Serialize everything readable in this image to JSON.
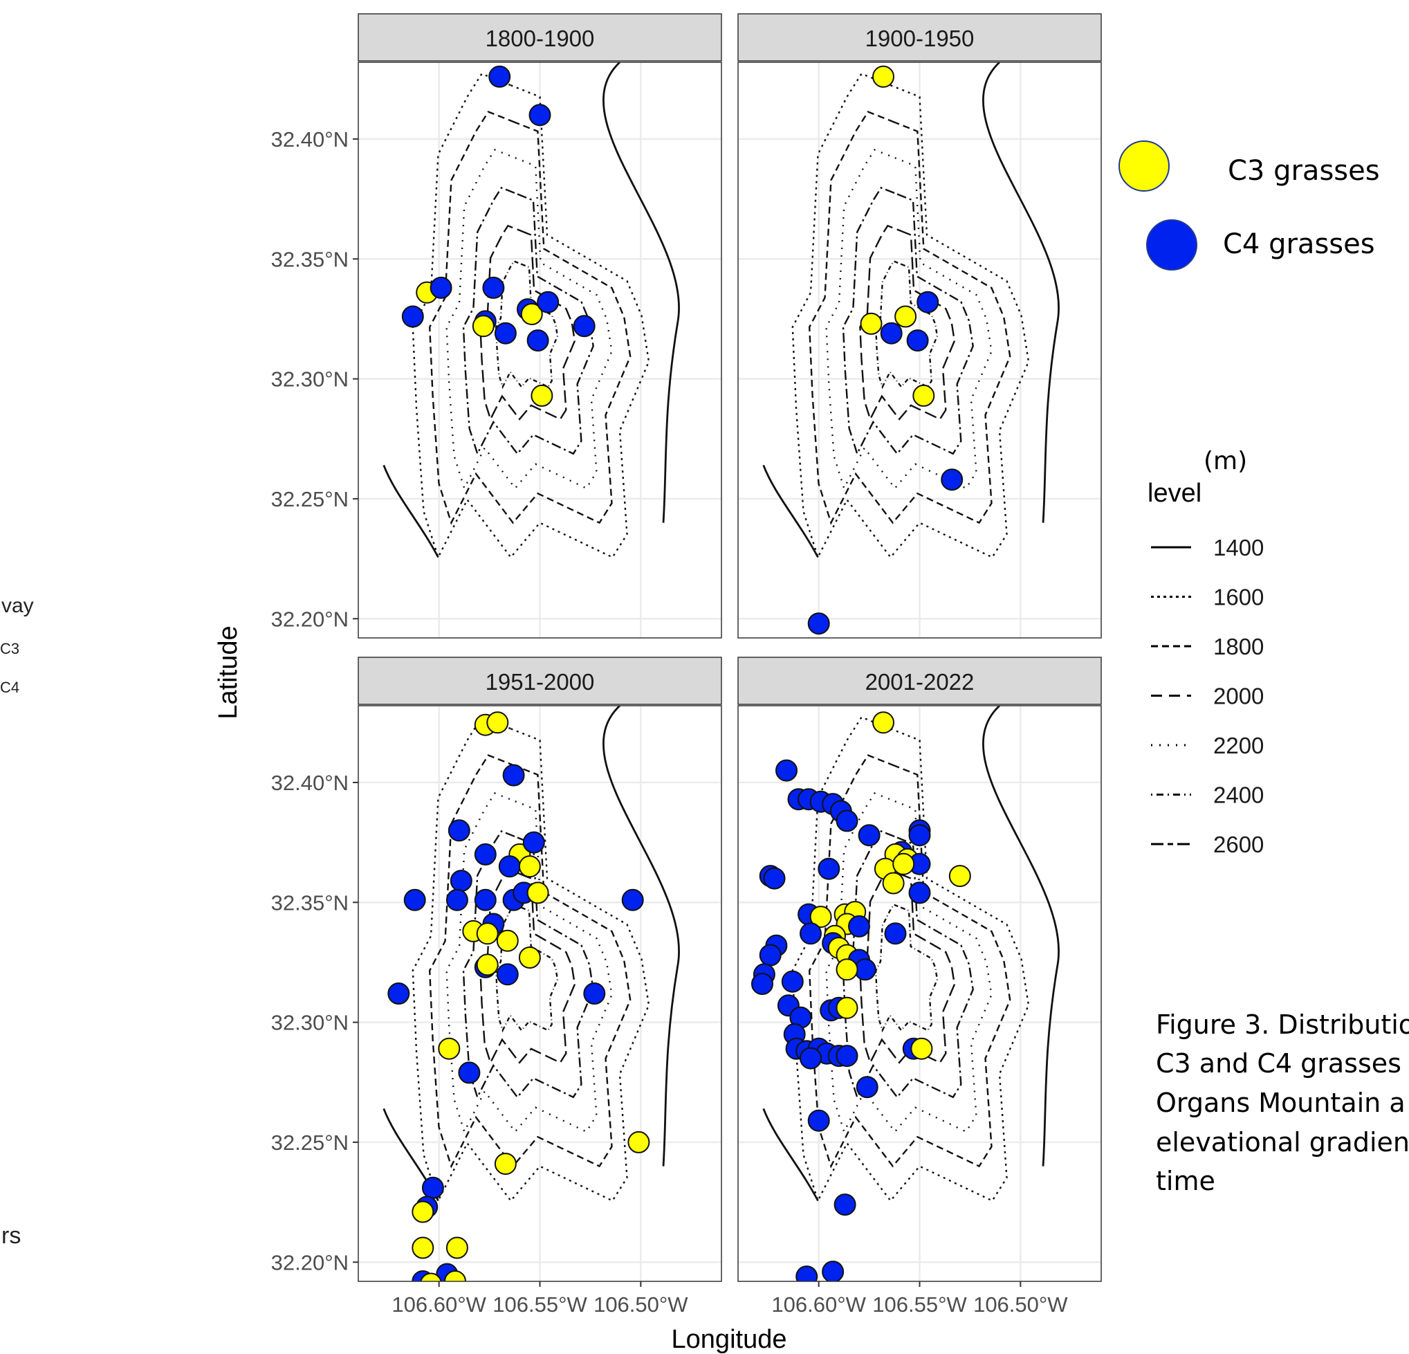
{
  "chart_data": {
    "type": "scatter",
    "facet_layout": "2x2",
    "xlabel": "Longitude",
    "ylabel": "Latitude",
    "xlim": [
      -106.64,
      -106.46
    ],
    "ylim": [
      32.192,
      32.432
    ],
    "x_ticks": [
      -106.6,
      -106.55,
      -106.5
    ],
    "x_tick_labels": [
      "106.60°W",
      "106.55°W",
      "106.50°W"
    ],
    "y_ticks": [
      32.2,
      32.25,
      32.3,
      32.35,
      32.4
    ],
    "y_tick_labels": [
      "32.20°N",
      "32.25°N",
      "32.30°N",
      "32.35°N",
      "32.40°N"
    ],
    "grid": true,
    "colors": {
      "C3": "#ffff00",
      "C4": "#0022ee",
      "strip": "#d9d9d9",
      "grid": "#ebebeb"
    },
    "legend_points": {
      "placement": "right-top",
      "entries": [
        {
          "label": "C3 grasses",
          "key": "C3"
        },
        {
          "label": "C4 grasses",
          "key": "C4"
        }
      ]
    },
    "legend_level": {
      "title_unit": "(m)",
      "title": "level",
      "placement": "right-middle",
      "entries": [
        {
          "label": "1400",
          "dash": "solid"
        },
        {
          "label": "1600",
          "dash": "dotted"
        },
        {
          "label": "1800",
          "dash": "dashed"
        },
        {
          "label": "2000",
          "dash": "longdash"
        },
        {
          "label": "2200",
          "dash": "dotted-sparse"
        },
        {
          "label": "2400",
          "dash": "dotdash"
        },
        {
          "label": "2600",
          "dash": "twodash"
        }
      ]
    },
    "panels": [
      {
        "label": "1800-1900",
        "points": [
          {
            "x": -106.57,
            "y": 32.426,
            "g": "C4"
          },
          {
            "x": -106.55,
            "y": 32.41,
            "g": "C4"
          },
          {
            "x": -106.606,
            "y": 32.336,
            "g": "C3"
          },
          {
            "x": -106.599,
            "y": 32.338,
            "g": "C4"
          },
          {
            "x": -106.573,
            "y": 32.338,
            "g": "C4"
          },
          {
            "x": -106.613,
            "y": 32.326,
            "g": "C4"
          },
          {
            "x": -106.577,
            "y": 32.324,
            "g": "C4"
          },
          {
            "x": -106.578,
            "y": 32.322,
            "g": "C3"
          },
          {
            "x": -106.567,
            "y": 32.319,
            "g": "C4"
          },
          {
            "x": -106.556,
            "y": 32.329,
            "g": "C4"
          },
          {
            "x": -106.554,
            "y": 32.327,
            "g": "C3"
          },
          {
            "x": -106.546,
            "y": 32.332,
            "g": "C4"
          },
          {
            "x": -106.551,
            "y": 32.316,
            "g": "C4"
          },
          {
            "x": -106.528,
            "y": 32.322,
            "g": "C4"
          },
          {
            "x": -106.549,
            "y": 32.293,
            "g": "C3"
          }
        ]
      },
      {
        "label": "1900-1950",
        "points": [
          {
            "x": -106.568,
            "y": 32.426,
            "g": "C3"
          },
          {
            "x": -106.574,
            "y": 32.323,
            "g": "C3"
          },
          {
            "x": -106.564,
            "y": 32.319,
            "g": "C4"
          },
          {
            "x": -106.557,
            "y": 32.326,
            "g": "C3"
          },
          {
            "x": -106.546,
            "y": 32.332,
            "g": "C4"
          },
          {
            "x": -106.551,
            "y": 32.316,
            "g": "C4"
          },
          {
            "x": -106.548,
            "y": 32.293,
            "g": "C3"
          },
          {
            "x": -106.534,
            "y": 32.258,
            "g": "C4"
          },
          {
            "x": -106.6,
            "y": 32.198,
            "g": "C4"
          }
        ]
      },
      {
        "label": "1951-2000",
        "points": [
          {
            "x": -106.577,
            "y": 32.424,
            "g": "C3"
          },
          {
            "x": -106.571,
            "y": 32.425,
            "g": "C3"
          },
          {
            "x": -106.563,
            "y": 32.403,
            "g": "C4"
          },
          {
            "x": -106.59,
            "y": 32.38,
            "g": "C4"
          },
          {
            "x": -106.577,
            "y": 32.37,
            "g": "C4"
          },
          {
            "x": -106.56,
            "y": 32.37,
            "g": "C3"
          },
          {
            "x": -106.553,
            "y": 32.375,
            "g": "C4"
          },
          {
            "x": -106.565,
            "y": 32.365,
            "g": "C4"
          },
          {
            "x": -106.555,
            "y": 32.365,
            "g": "C3"
          },
          {
            "x": -106.589,
            "y": 32.359,
            "g": "C4"
          },
          {
            "x": -106.612,
            "y": 32.351,
            "g": "C4"
          },
          {
            "x": -106.591,
            "y": 32.351,
            "g": "C4"
          },
          {
            "x": -106.577,
            "y": 32.351,
            "g": "C4"
          },
          {
            "x": -106.563,
            "y": 32.351,
            "g": "C4"
          },
          {
            "x": -106.558,
            "y": 32.354,
            "g": "C4"
          },
          {
            "x": -106.551,
            "y": 32.354,
            "g": "C3"
          },
          {
            "x": -106.504,
            "y": 32.351,
            "g": "C4"
          },
          {
            "x": -106.573,
            "y": 32.341,
            "g": "C4"
          },
          {
            "x": -106.583,
            "y": 32.338,
            "g": "C3"
          },
          {
            "x": -106.576,
            "y": 32.337,
            "g": "C3"
          },
          {
            "x": -106.566,
            "y": 32.334,
            "g": "C3"
          },
          {
            "x": -106.555,
            "y": 32.327,
            "g": "C3"
          },
          {
            "x": -106.577,
            "y": 32.323,
            "g": "C4"
          },
          {
            "x": -106.576,
            "y": 32.324,
            "g": "C3"
          },
          {
            "x": -106.566,
            "y": 32.32,
            "g": "C4"
          },
          {
            "x": -106.62,
            "y": 32.312,
            "g": "C4"
          },
          {
            "x": -106.523,
            "y": 32.312,
            "g": "C4"
          },
          {
            "x": -106.595,
            "y": 32.289,
            "g": "C3"
          },
          {
            "x": -106.585,
            "y": 32.279,
            "g": "C4"
          },
          {
            "x": -106.501,
            "y": 32.25,
            "g": "C3"
          },
          {
            "x": -106.567,
            "y": 32.241,
            "g": "C3"
          },
          {
            "x": -106.603,
            "y": 32.231,
            "g": "C4"
          },
          {
            "x": -106.606,
            "y": 32.223,
            "g": "C4"
          },
          {
            "x": -106.608,
            "y": 32.221,
            "g": "C3"
          },
          {
            "x": -106.608,
            "y": 32.206,
            "g": "C3"
          },
          {
            "x": -106.591,
            "y": 32.206,
            "g": "C3"
          },
          {
            "x": -106.596,
            "y": 32.195,
            "g": "C4"
          },
          {
            "x": -106.608,
            "y": 32.192,
            "g": "C4"
          },
          {
            "x": -106.604,
            "y": 32.191,
            "g": "C3"
          },
          {
            "x": -106.592,
            "y": 32.192,
            "g": "C3"
          }
        ]
      },
      {
        "label": "2001-2022",
        "points": [
          {
            "x": -106.568,
            "y": 32.425,
            "g": "C3"
          },
          {
            "x": -106.616,
            "y": 32.405,
            "g": "C4"
          },
          {
            "x": -106.61,
            "y": 32.393,
            "g": "C4"
          },
          {
            "x": -106.605,
            "y": 32.393,
            "g": "C4"
          },
          {
            "x": -106.599,
            "y": 32.392,
            "g": "C4"
          },
          {
            "x": -106.593,
            "y": 32.391,
            "g": "C4"
          },
          {
            "x": -106.589,
            "y": 32.388,
            "g": "C4"
          },
          {
            "x": -106.586,
            "y": 32.384,
            "g": "C4"
          },
          {
            "x": -106.575,
            "y": 32.378,
            "g": "C4"
          },
          {
            "x": -106.55,
            "y": 32.38,
            "g": "C4"
          },
          {
            "x": -106.55,
            "y": 32.378,
            "g": "C4"
          },
          {
            "x": -106.559,
            "y": 32.371,
            "g": "C4"
          },
          {
            "x": -106.562,
            "y": 32.37,
            "g": "C3"
          },
          {
            "x": -106.556,
            "y": 32.368,
            "g": "C3"
          },
          {
            "x": -106.55,
            "y": 32.366,
            "g": "C4"
          },
          {
            "x": -106.567,
            "y": 32.364,
            "g": "C3"
          },
          {
            "x": -106.558,
            "y": 32.366,
            "g": "C3"
          },
          {
            "x": -106.595,
            "y": 32.364,
            "g": "C4"
          },
          {
            "x": -106.624,
            "y": 32.361,
            "g": "C4"
          },
          {
            "x": -106.622,
            "y": 32.36,
            "g": "C4"
          },
          {
            "x": -106.53,
            "y": 32.361,
            "g": "C3"
          },
          {
            "x": -106.563,
            "y": 32.358,
            "g": "C3"
          },
          {
            "x": -106.55,
            "y": 32.354,
            "g": "C4"
          },
          {
            "x": -106.605,
            "y": 32.345,
            "g": "C4"
          },
          {
            "x": -106.599,
            "y": 32.344,
            "g": "C3"
          },
          {
            "x": -106.587,
            "y": 32.345,
            "g": "C3"
          },
          {
            "x": -106.582,
            "y": 32.346,
            "g": "C3"
          },
          {
            "x": -106.586,
            "y": 32.341,
            "g": "C3"
          },
          {
            "x": -106.604,
            "y": 32.337,
            "g": "C4"
          },
          {
            "x": -106.592,
            "y": 32.336,
            "g": "C3"
          },
          {
            "x": -106.58,
            "y": 32.34,
            "g": "C4"
          },
          {
            "x": -106.562,
            "y": 32.337,
            "g": "C4"
          },
          {
            "x": -106.621,
            "y": 32.332,
            "g": "C4"
          },
          {
            "x": -106.624,
            "y": 32.328,
            "g": "C4"
          },
          {
            "x": -106.593,
            "y": 32.333,
            "g": "C4"
          },
          {
            "x": -106.59,
            "y": 32.331,
            "g": "C3"
          },
          {
            "x": -106.586,
            "y": 32.328,
            "g": "C3"
          },
          {
            "x": -106.58,
            "y": 32.326,
            "g": "C4"
          },
          {
            "x": -106.577,
            "y": 32.322,
            "g": "C4"
          },
          {
            "x": -106.586,
            "y": 32.322,
            "g": "C3"
          },
          {
            "x": -106.627,
            "y": 32.32,
            "g": "C4"
          },
          {
            "x": -106.628,
            "y": 32.316,
            "g": "C4"
          },
          {
            "x": -106.613,
            "y": 32.317,
            "g": "C4"
          },
          {
            "x": -106.594,
            "y": 32.305,
            "g": "C4"
          },
          {
            "x": -106.59,
            "y": 32.306,
            "g": "C4"
          },
          {
            "x": -106.586,
            "y": 32.306,
            "g": "C3"
          },
          {
            "x": -106.615,
            "y": 32.307,
            "g": "C4"
          },
          {
            "x": -106.609,
            "y": 32.302,
            "g": "C4"
          },
          {
            "x": -106.612,
            "y": 32.295,
            "g": "C4"
          },
          {
            "x": -106.611,
            "y": 32.289,
            "g": "C4"
          },
          {
            "x": -106.606,
            "y": 32.288,
            "g": "C4"
          },
          {
            "x": -106.6,
            "y": 32.289,
            "g": "C4"
          },
          {
            "x": -106.596,
            "y": 32.287,
            "g": "C4"
          },
          {
            "x": -106.59,
            "y": 32.286,
            "g": "C4"
          },
          {
            "x": -106.586,
            "y": 32.286,
            "g": "C4"
          },
          {
            "x": -106.604,
            "y": 32.285,
            "g": "C4"
          },
          {
            "x": -106.553,
            "y": 32.289,
            "g": "C4"
          },
          {
            "x": -106.549,
            "y": 32.289,
            "g": "C3"
          },
          {
            "x": -106.576,
            "y": 32.273,
            "g": "C4"
          },
          {
            "x": -106.6,
            "y": 32.259,
            "g": "C4"
          },
          {
            "x": -106.587,
            "y": 32.224,
            "g": "C4"
          },
          {
            "x": -106.593,
            "y": 32.196,
            "g": "C4"
          },
          {
            "x": -106.606,
            "y": 32.194,
            "g": "C4"
          }
        ]
      }
    ]
  },
  "caption": {
    "lines": [
      "Figure 3. Distributio",
      "C3 and C4 grasses i",
      "Organs Mountain a",
      "elevational gradien",
      "time"
    ]
  },
  "left_fragment": {
    "lines": [
      "vay",
      "C3",
      "C4",
      "rs"
    ]
  }
}
